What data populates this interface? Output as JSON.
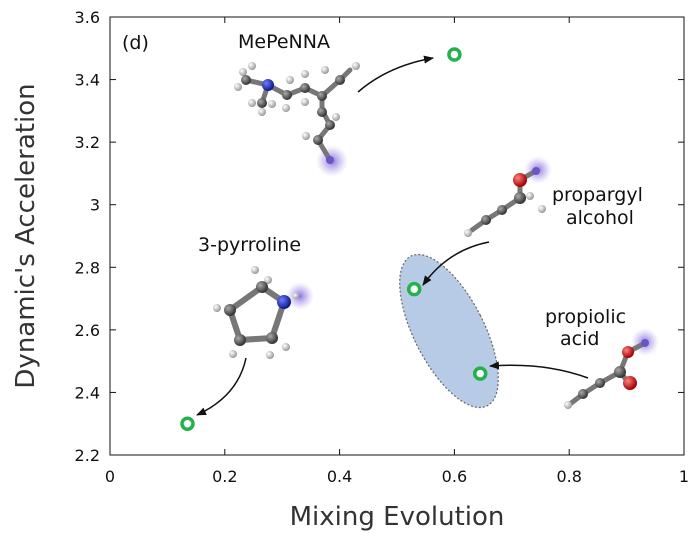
{
  "chart_data": {
    "type": "scatter",
    "panel_label": "(d)",
    "xlabel": "Mixing Evolution",
    "ylabel": "Dynamic's Acceleration",
    "xlim": [
      0,
      1
    ],
    "ylim": [
      2.2,
      3.6
    ],
    "xticks": [
      0,
      0.2,
      0.4,
      0.6,
      0.8,
      1
    ],
    "xtick_labels": [
      "0",
      "0.2",
      "0.4",
      "0.6",
      "0.8",
      "1"
    ],
    "yticks": [
      2.2,
      2.4,
      2.6,
      2.8,
      3.0,
      3.2,
      3.4,
      3.6
    ],
    "ytick_labels": [
      "2.2",
      "2.4",
      "2.6",
      "2.8",
      "3",
      "3.2",
      "3.4",
      "3.6"
    ],
    "grid": false,
    "marker_color": "#22b14c",
    "points": [
      {
        "x": 0.6,
        "y": 3.48,
        "label": "MePeNNA"
      },
      {
        "x": 0.53,
        "y": 2.73,
        "label": "propargyl alcohol"
      },
      {
        "x": 0.645,
        "y": 2.46,
        "label": "propiolic acid"
      },
      {
        "x": 0.135,
        "y": 2.3,
        "label": "3-pyrroline"
      }
    ],
    "annotations": [
      {
        "text": "MePeNNA"
      },
      {
        "text": "propargyl"
      },
      {
        "text": "alcohol"
      },
      {
        "text": "3-pyrroline"
      },
      {
        "text": "propiolic"
      },
      {
        "text": "acid"
      }
    ],
    "highlight_ellipse_color": "#b8cbe6"
  }
}
